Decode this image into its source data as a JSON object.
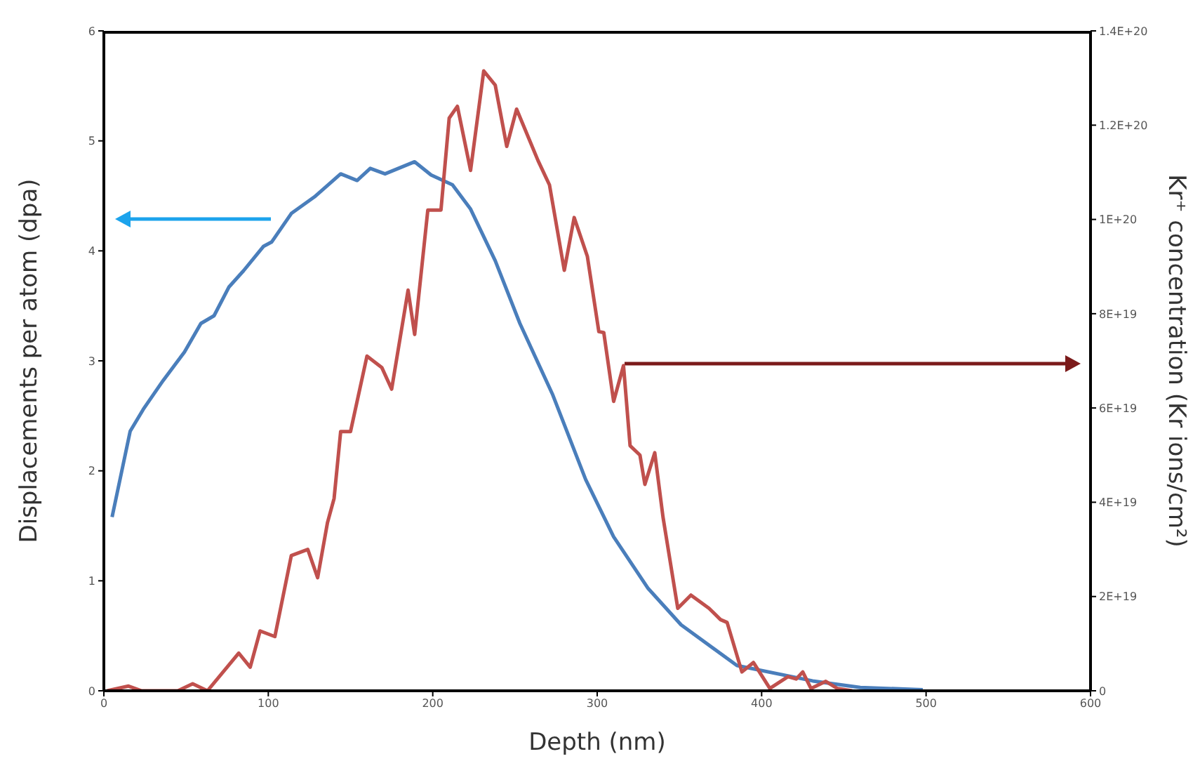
{
  "chart_data": {
    "type": "line",
    "xlabel": "Depth (nm)",
    "ylabel": "Displacements per atom (dpa)",
    "y2label": "Kr⁺ concentration (Kr ions/cm²)",
    "xlim": [
      0,
      600
    ],
    "xticks": [
      0,
      100,
      200,
      300,
      400,
      500,
      600
    ],
    "ylim": [
      0,
      6
    ],
    "yticks": [
      0,
      1,
      2,
      3,
      4,
      5,
      6
    ],
    "y2lim": [
      0,
      1.4e+20
    ],
    "y2ticks": [
      {
        "value": 0,
        "label": "0"
      },
      {
        "value": 2e+19,
        "label": "2E+19"
      },
      {
        "value": 4e+19,
        "label": "4E+19"
      },
      {
        "value": 6e+19,
        "label": "6E+19"
      },
      {
        "value": 8e+19,
        "label": "8E+19"
      },
      {
        "value": 1e+20,
        "label": "1E+20"
      },
      {
        "value": 1.2e+20,
        "label": "1.2E+20"
      },
      {
        "value": 1.4e+20,
        "label": "1.4E+20"
      }
    ],
    "grid": false,
    "legend": false,
    "marker": "none",
    "line_style": "solid",
    "series": [
      {
        "color": "#4a7ebb",
        "x": [
          5,
          16,
          24,
          36,
          49,
          59,
          67,
          76,
          85,
          97,
          102,
          114,
          128,
          144,
          154,
          162,
          171,
          189,
          199,
          212,
          223,
          238,
          253,
          273,
          293,
          310,
          331,
          351,
          385,
          431,
          460,
          498
        ],
        "values": [
          1.58,
          2.36,
          2.56,
          2.82,
          3.08,
          3.34,
          3.41,
          3.67,
          3.82,
          4.04,
          4.08,
          4.34,
          4.49,
          4.7,
          4.64,
          4.75,
          4.7,
          4.81,
          4.69,
          4.6,
          4.38,
          3.91,
          3.34,
          2.69,
          1.92,
          1.4,
          0.93,
          0.6,
          0.23,
          0.09,
          0.03,
          0.01
        ]
      },
      {
        "color": "#c0504d",
        "axis": "y2",
        "x": [
          2,
          15,
          23,
          36,
          45,
          54,
          63,
          82,
          89,
          95,
          104,
          114,
          124,
          130,
          136,
          140,
          144,
          150,
          160,
          169,
          175,
          185,
          189,
          197,
          205,
          210,
          215,
          223,
          231,
          238,
          245,
          251,
          264,
          271,
          280,
          286,
          294,
          301,
          304,
          310,
          316,
          320,
          326,
          329,
          335,
          340,
          349,
          357,
          368,
          375,
          379,
          388,
          395,
          405,
          416,
          421,
          425,
          430,
          439,
          446,
          455
        ],
        "values": [
          0,
          1e+18,
          0,
          0,
          0,
          1.5e+18,
          0,
          8e+18,
          5e+18,
          1.27e+19,
          1.15e+19,
          2.87e+19,
          3e+19,
          2.4e+19,
          3.57e+19,
          4.08e+19,
          5.5e+19,
          5.5e+19,
          7.1e+19,
          6.86e+19,
          6.4e+19,
          8.5e+19,
          7.56e+19,
          1.02e+20,
          1.02e+20,
          1.215e+20,
          1.24e+20,
          1.104e+20,
          1.315e+20,
          1.285e+20,
          1.155e+20,
          1.234e+20,
          1.125e+20,
          1.073e+20,
          8.92e+19,
          1.004e+20,
          9.22e+19,
          7.62e+19,
          7.6e+19,
          6.14e+19,
          6.9e+19,
          5.2e+19,
          5e+19,
          4.38e+19,
          5.05e+19,
          3.69e+19,
          1.75e+19,
          2.03e+19,
          1.75e+19,
          1.51e+19,
          1.45e+19,
          4e+18,
          6e+18,
          5e+17,
          3e+18,
          2.5e+18,
          4e+18,
          5e+17,
          2e+18,
          5e+17,
          0
        ]
      }
    ]
  }
}
